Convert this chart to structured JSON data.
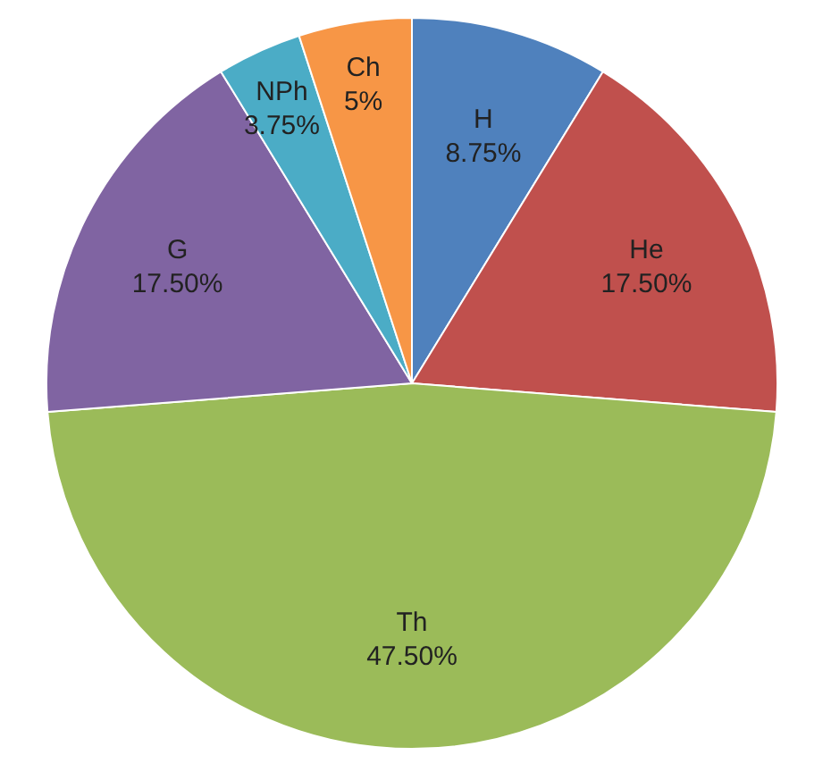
{
  "chart_data": {
    "type": "pie",
    "categories": [
      "H",
      "He",
      "Th",
      "G",
      "NPh",
      "Ch"
    ],
    "values": [
      8.75,
      17.5,
      47.5,
      17.5,
      3.75,
      5
    ],
    "value_labels": [
      "8.75%",
      "17.50%",
      "47.50%",
      "17.50%",
      "3.75%",
      "5%"
    ],
    "colors": [
      "#4f81bd",
      "#c0504d",
      "#9bbb59",
      "#8064a2",
      "#4bacc6",
      "#f79646"
    ]
  }
}
